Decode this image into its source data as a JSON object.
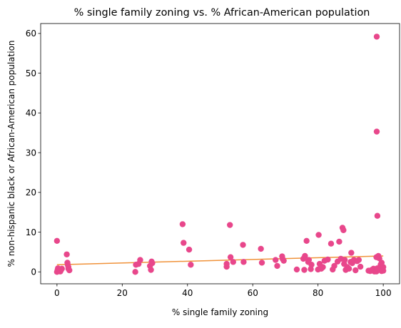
{
  "chart_data": {
    "type": "scatter",
    "title": "% single family zoning vs. % African-American population",
    "xlabel": "% single family zoning",
    "ylabel": "% non-hispanic black or African-American population",
    "xlim": [
      -5,
      105
    ],
    "ylim": [
      -3,
      62.5
    ],
    "xticks": [
      0,
      20,
      40,
      60,
      80,
      100
    ],
    "yticks": [
      0,
      10,
      20,
      30,
      40,
      50,
      60
    ],
    "grid": false,
    "colors": {
      "points": "#e8478b",
      "trend": "#f0923a"
    },
    "series": [
      {
        "kind": "points",
        "x": [
          0,
          0.2,
          0.3,
          0.5,
          0.8,
          1.0,
          1.2,
          1.5,
          0,
          3.0,
          3.2,
          3.5,
          3.5,
          3.8,
          3.3,
          0.3,
          24.0,
          24.2,
          25.0,
          25.5,
          28.5,
          28.8,
          29.0,
          29.2,
          38.5,
          38.8,
          40.5,
          41.0,
          52.0,
          52.0,
          53.0,
          53.2,
          54.0,
          57.0,
          57.2,
          62.5,
          62.8,
          67.0,
          67.5,
          69.0,
          69.2,
          69.5,
          73.5,
          75.5,
          75.8,
          76.0,
          76.5,
          77.0,
          77.2,
          77.8,
          78.0,
          80.0,
          80.2,
          80.5,
          81.0,
          81.5,
          82.0,
          83.0,
          84.0,
          84.5,
          85.0,
          86.0,
          86.5,
          87.0,
          87.5,
          87.8,
          88.0,
          88.2,
          88.5,
          89.0,
          89.5,
          90.0,
          90.2,
          90.5,
          91.0,
          91.5,
          92.0,
          92.5,
          93.0,
          95.5,
          96.0,
          96.5,
          97.0,
          97.3,
          97.5,
          97.8,
          98.0,
          98.0,
          98.2,
          98.5,
          98.8,
          99.0,
          99.2,
          99.5,
          99.8,
          100.0,
          100.0,
          99.5,
          98.5,
          97.9,
          97.9,
          98.2
        ],
        "y": [
          7.8,
          0.5,
          0.2,
          0.6,
          0.3,
          0.1,
          0.4,
          0.8,
          0.0,
          4.4,
          2.3,
          1.2,
          0.8,
          0.4,
          1.8,
          0.9,
          0.0,
          1.8,
          2.0,
          3.0,
          1.5,
          0.5,
          2.6,
          2.2,
          12.0,
          7.3,
          5.6,
          1.8,
          2.0,
          1.3,
          11.8,
          3.7,
          2.5,
          6.8,
          2.5,
          5.8,
          2.3,
          3.0,
          1.5,
          3.9,
          3.2,
          2.8,
          0.6,
          3.3,
          0.5,
          4.0,
          7.8,
          2.5,
          3.0,
          0.7,
          1.8,
          0.6,
          9.3,
          2.0,
          0.8,
          1.2,
          2.8,
          3.1,
          7.1,
          0.6,
          1.5,
          2.6,
          7.6,
          3.3,
          11.1,
          10.5,
          2.0,
          3.0,
          0.5,
          1.2,
          0.8,
          2.5,
          4.8,
          2.2,
          3.0,
          0.4,
          2.7,
          3.0,
          1.3,
          0.3,
          0.2,
          0.5,
          0.8,
          0.1,
          0.4,
          0.3,
          59.2,
          35.3,
          14.1,
          4.0,
          3.4,
          0.5,
          1.8,
          0.2,
          0.6,
          0.3,
          1.2,
          2.3,
          0.6,
          3.7,
          0.1,
          0.9
        ]
      },
      {
        "kind": "trend",
        "x": [
          0,
          100
        ],
        "y": [
          1.8,
          4.0
        ]
      }
    ]
  }
}
